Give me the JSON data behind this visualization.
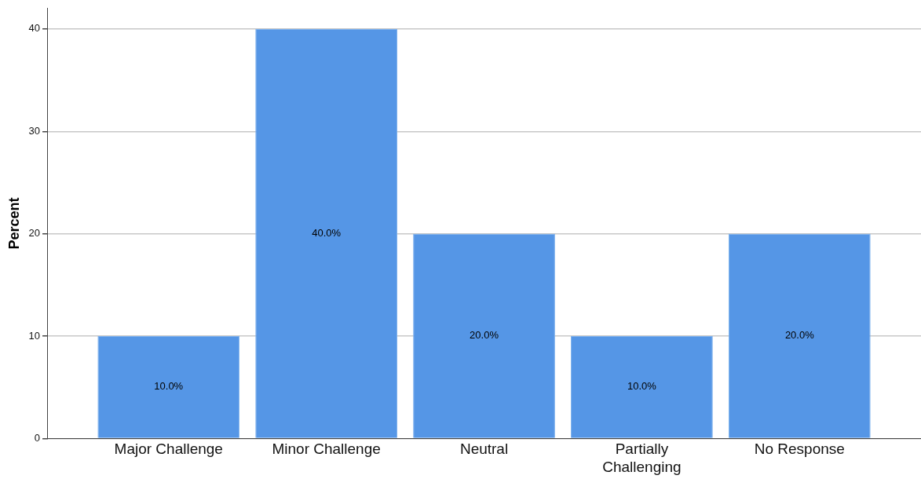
{
  "chart_data": {
    "type": "bar",
    "ylabel": "Percent",
    "categories": [
      "Major Challenge",
      "Minor Challenge",
      "Neutral",
      "Partially Challenging",
      "No Response"
    ],
    "values": [
      10,
      40,
      20,
      10,
      20
    ],
    "value_labels": [
      "10.0%",
      "40.0%",
      "20.0%",
      "10.0%",
      "20.0%"
    ],
    "color": "#5596e6",
    "ylim": [
      0,
      42
    ],
    "yticks": [
      0,
      10,
      20,
      30,
      40
    ],
    "grid": "y",
    "legend": false
  }
}
